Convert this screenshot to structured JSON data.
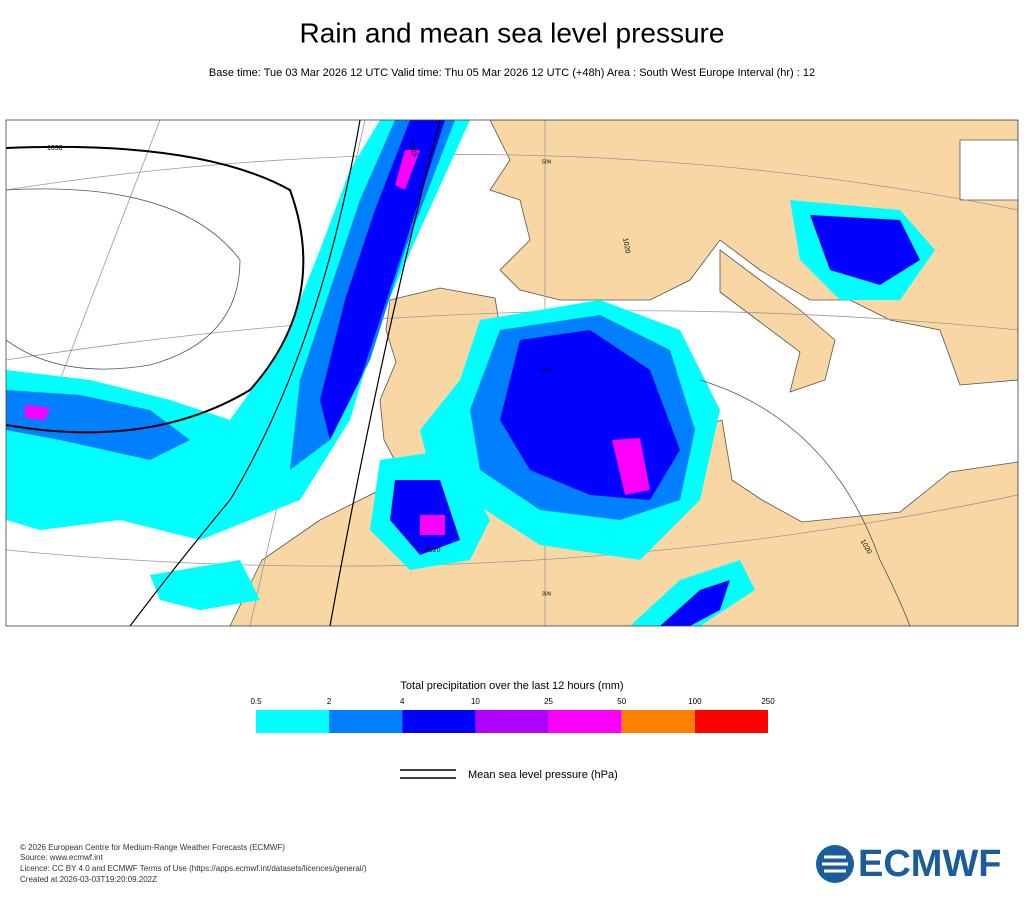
{
  "header": {
    "title": "Rain and mean sea level pressure",
    "subtitle": "Base time: Tue 03 Mar 2026 12 UTC Valid time: Thu 05 Mar 2026 12 UTC (+48h) Area : South West Europe Interval (hr) : 12"
  },
  "map": {
    "contour_labels": [
      "1030",
      "1025",
      "1020",
      "1020",
      "1020"
    ],
    "lat_labels": [
      "50N",
      "40N",
      "30N"
    ]
  },
  "legend": {
    "title": "Total precipitation over the last 12 hours (mm)",
    "levels": [
      0.5,
      2,
      4,
      10,
      25,
      50,
      100,
      250
    ],
    "colors": [
      "#00ffff",
      "#0080ff",
      "#0000ff",
      "#b000ff",
      "#ff00ff",
      "#ff8000",
      "#ff0000"
    ]
  },
  "pressure_legend": {
    "label": "Mean sea level pressure (hPa)"
  },
  "footer": {
    "lines": [
      "© 2026 European Centre for Medium-Range Weather Forecasts (ECMWF)",
      "Source: www.ecmwf.int",
      "Licence: CC BY 4.0 and ECMWF Terms of Use (https://apps.ecmwf.int/datasets/licences/general/)",
      "Created at 2026-03-03T19:20:09.202Z"
    ]
  },
  "logo": {
    "text": "ECMWF"
  }
}
